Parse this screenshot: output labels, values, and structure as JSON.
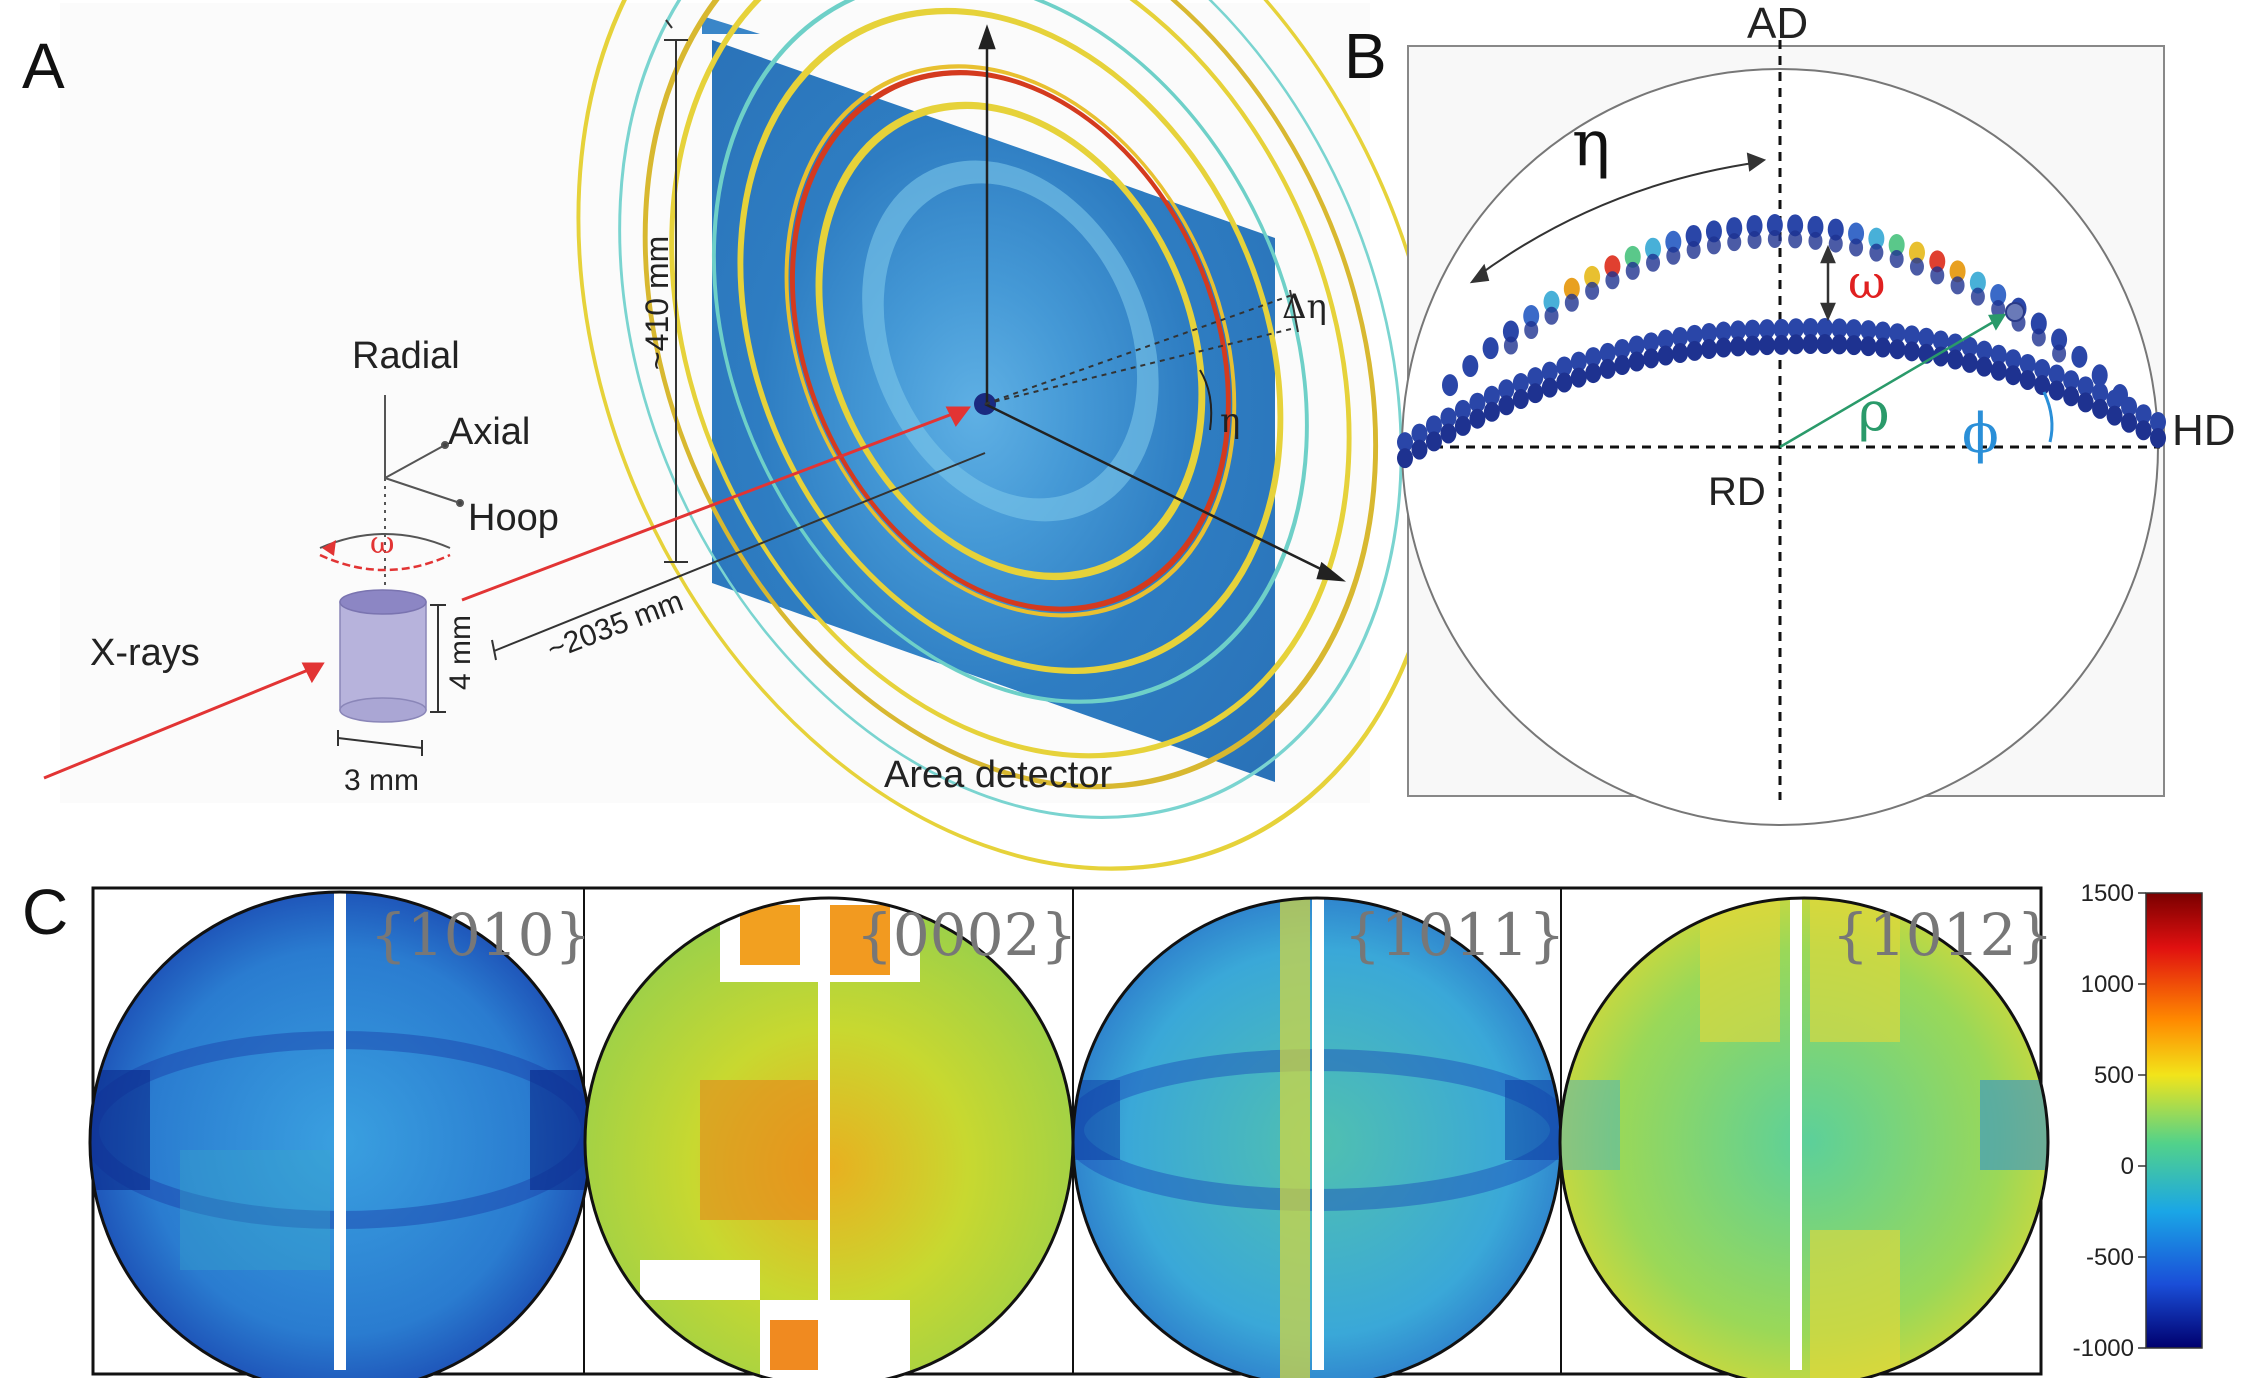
{
  "panel_a": {
    "label": "A",
    "sample_axes": [
      "Radial",
      "Axial",
      "Hoop"
    ],
    "omega": "ω",
    "xrays": "X-rays",
    "dim_height": "4 mm",
    "dim_width": "3 mm",
    "distance": "~2035 mm",
    "detector_size": "~410 mm",
    "delta_eta": "Δη",
    "eta": "η",
    "detector_label": "Area detector"
  },
  "panel_b": {
    "label": "B",
    "ad": "AD",
    "hd": "HD",
    "rd": "RD",
    "eta": "η",
    "omega": "ω",
    "rho": "ρ",
    "phi": "ϕ"
  },
  "panel_c": {
    "label": "C",
    "planes": [
      "{1010}",
      "{0002}",
      "{1011}",
      "{1012}"
    ],
    "colorbar_ticks": [
      "1500",
      "1000",
      "500",
      "0",
      "-500",
      "-1000"
    ],
    "colorbar_range": [
      -1000,
      1500
    ]
  },
  "colors": {
    "detector_bg": "#2f7fc4",
    "ring_yellow": "#e6d23a",
    "ring_red": "#d43a1e",
    "xray_red": "#e23434",
    "sample": "#b7b3dc",
    "green": "#2a9a6a",
    "blue_phi": "#2a8fd8"
  }
}
